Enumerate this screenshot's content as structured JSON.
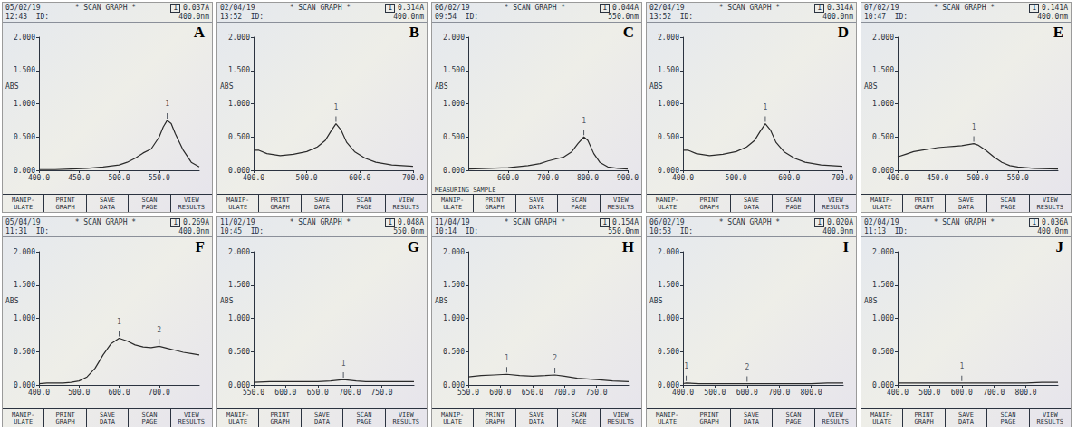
{
  "buttons": [
    [
      "MANIP-",
      "ULATE"
    ],
    [
      "PRINT",
      "GRAPH"
    ],
    [
      "SAVE",
      "DATA"
    ],
    [
      "SCAN",
      "PAGE"
    ],
    [
      "VIEW",
      "RESULTS"
    ]
  ],
  "chart_data": [
    {
      "type": "line",
      "panel": "A",
      "date": "05/02/19",
      "time": "12:43",
      "title": "* SCAN GRAPH *",
      "id_label": "ID:",
      "channel": "1",
      "reading": "0.037A",
      "wavelength": "400.0nm",
      "ylabel": "ABS",
      "grid": false,
      "x": [
        400,
        420,
        440,
        460,
        480,
        500,
        510,
        520,
        530,
        540,
        550,
        555,
        560,
        565,
        570,
        580,
        590,
        600
      ],
      "values": [
        0.01,
        0.01,
        0.02,
        0.03,
        0.05,
        0.08,
        0.12,
        0.18,
        0.26,
        0.32,
        0.5,
        0.65,
        0.75,
        0.7,
        0.55,
        0.3,
        0.12,
        0.05
      ],
      "xlim": [
        400,
        600
      ],
      "xticks": [
        {
          "value": 400,
          "label": "400.0"
        },
        {
          "value": 450,
          "label": "450.0"
        },
        {
          "value": 500,
          "label": "500.0"
        },
        {
          "value": 550,
          "label": "550.0"
        }
      ],
      "ylim": [
        0,
        2
      ],
      "yticks": [
        {
          "value": 0,
          "label": "0.000"
        },
        {
          "value": 0.5,
          "label": "0.500"
        },
        {
          "value": 1,
          "label": "1.000"
        },
        {
          "value": 1.5,
          "label": "1.500"
        },
        {
          "value": 2,
          "label": "2.000"
        }
      ],
      "annotations": [
        {
          "x": 560,
          "y": 0.75,
          "text": "1"
        }
      ]
    },
    {
      "type": "line",
      "panel": "B",
      "date": "02/04/19",
      "time": "13:52",
      "title": "* SCAN GRAPH *",
      "id_label": "ID:",
      "channel": "1",
      "reading": "0.314A",
      "wavelength": "400.0nm",
      "ylabel": "ABS",
      "grid": false,
      "x": [
        400,
        410,
        425,
        450,
        475,
        500,
        520,
        535,
        545,
        555,
        565,
        575,
        590,
        610,
        630,
        660,
        700
      ],
      "values": [
        0.3,
        0.3,
        0.25,
        0.22,
        0.24,
        0.28,
        0.35,
        0.45,
        0.58,
        0.7,
        0.6,
        0.42,
        0.28,
        0.18,
        0.12,
        0.08,
        0.06
      ],
      "xlim": [
        400,
        700
      ],
      "xticks": [
        {
          "value": 400,
          "label": "400.0"
        },
        {
          "value": 500,
          "label": "500.0"
        },
        {
          "value": 600,
          "label": "600.0"
        },
        {
          "value": 700,
          "label": "700.0"
        }
      ],
      "ylim": [
        0,
        2
      ],
      "yticks": [
        {
          "value": 0,
          "label": "0.000"
        },
        {
          "value": 0.5,
          "label": "0.500"
        },
        {
          "value": 1,
          "label": "1.000"
        },
        {
          "value": 1.5,
          "label": "1.500"
        },
        {
          "value": 2,
          "label": "2.000"
        }
      ],
      "annotations": [
        {
          "x": 555,
          "y": 0.7,
          "text": "1"
        }
      ]
    },
    {
      "type": "line",
      "panel": "C",
      "date": "06/02/19",
      "time": "09:54",
      "title": "* SCAN GRAPH *",
      "id_label": "ID:",
      "channel": "1",
      "reading": "0.044A",
      "wavelength": "550.0nm",
      "ylabel": "ABS",
      "grid": false,
      "status": "MEASURING SAMPLE",
      "x": [
        500,
        550,
        600,
        650,
        680,
        700,
        720,
        740,
        760,
        775,
        790,
        800,
        815,
        830,
        850,
        875,
        900
      ],
      "values": [
        0.02,
        0.03,
        0.04,
        0.07,
        0.1,
        0.14,
        0.17,
        0.2,
        0.28,
        0.4,
        0.5,
        0.45,
        0.25,
        0.12,
        0.05,
        0.03,
        0.02
      ],
      "xlim": [
        500,
        900
      ],
      "xticks": [
        {
          "value": 600,
          "label": "600.0"
        },
        {
          "value": 700,
          "label": "700.0"
        },
        {
          "value": 800,
          "label": "800.0"
        },
        {
          "value": 900,
          "label": "900.0"
        }
      ],
      "ylim": [
        0,
        2
      ],
      "yticks": [
        {
          "value": 0,
          "label": "0.000"
        },
        {
          "value": 0.5,
          "label": "0.500"
        },
        {
          "value": 1,
          "label": "1.000"
        },
        {
          "value": 1.5,
          "label": "1.500"
        },
        {
          "value": 2,
          "label": "2.000"
        }
      ],
      "annotations": [
        {
          "x": 790,
          "y": 0.5,
          "text": "1"
        }
      ]
    },
    {
      "type": "line",
      "panel": "D",
      "date": "02/04/19",
      "time": "13:52",
      "title": "* SCAN GRAPH *",
      "id_label": "ID:",
      "channel": "1",
      "reading": "0.314A",
      "wavelength": "400.0nm",
      "ylabel": "ABS",
      "grid": false,
      "x": [
        400,
        410,
        425,
        450,
        475,
        500,
        520,
        535,
        545,
        555,
        565,
        575,
        590,
        610,
        630,
        660,
        700
      ],
      "values": [
        0.3,
        0.3,
        0.25,
        0.22,
        0.24,
        0.28,
        0.35,
        0.45,
        0.58,
        0.7,
        0.6,
        0.42,
        0.28,
        0.18,
        0.12,
        0.08,
        0.06
      ],
      "xlim": [
        400,
        700
      ],
      "xticks": [
        {
          "value": 400,
          "label": "400.0"
        },
        {
          "value": 500,
          "label": "500.0"
        },
        {
          "value": 600,
          "label": "600.0"
        },
        {
          "value": 700,
          "label": "700.0"
        }
      ],
      "ylim": [
        0,
        2
      ],
      "yticks": [
        {
          "value": 0,
          "label": "0.000"
        },
        {
          "value": 0.5,
          "label": "0.500"
        },
        {
          "value": 1,
          "label": "1.000"
        },
        {
          "value": 1.5,
          "label": "1.500"
        },
        {
          "value": 2,
          "label": "2.000"
        }
      ],
      "annotations": [
        {
          "x": 555,
          "y": 0.7,
          "text": "1"
        }
      ]
    },
    {
      "type": "line",
      "panel": "E",
      "date": "07/02/19",
      "time": "10:47",
      "title": "* SCAN GRAPH *",
      "id_label": "ID:",
      "channel": "1",
      "reading": "0.141A",
      "wavelength": "400.0nm",
      "ylabel": "ABS",
      "grid": false,
      "x": [
        400,
        410,
        420,
        430,
        440,
        450,
        460,
        470,
        480,
        490,
        495,
        500,
        510,
        520,
        530,
        540,
        550,
        570,
        600
      ],
      "values": [
        0.2,
        0.24,
        0.28,
        0.3,
        0.32,
        0.34,
        0.35,
        0.36,
        0.37,
        0.39,
        0.4,
        0.38,
        0.3,
        0.2,
        0.12,
        0.07,
        0.05,
        0.03,
        0.02
      ],
      "xlim": [
        400,
        600
      ],
      "xticks": [
        {
          "value": 400,
          "label": "400.0"
        },
        {
          "value": 450,
          "label": "450.0"
        },
        {
          "value": 500,
          "label": "500.0"
        },
        {
          "value": 550,
          "label": "550.0"
        }
      ],
      "ylim": [
        0,
        2
      ],
      "yticks": [
        {
          "value": 0,
          "label": "0.000"
        },
        {
          "value": 0.5,
          "label": "0.500"
        },
        {
          "value": 1,
          "label": "1.000"
        },
        {
          "value": 1.5,
          "label": "1.500"
        },
        {
          "value": 2,
          "label": "2.000"
        }
      ],
      "annotations": [
        {
          "x": 495,
          "y": 0.4,
          "text": "1"
        }
      ]
    },
    {
      "type": "line",
      "panel": "F",
      "date": "05/04/19",
      "time": "11:31",
      "title": "* SCAN GRAPH *",
      "id_label": "ID:",
      "channel": "1",
      "reading": "0.269A",
      "wavelength": "400.0nm",
      "ylabel": "ABS",
      "grid": false,
      "x": [
        400,
        420,
        440,
        460,
        480,
        500,
        520,
        540,
        560,
        580,
        600,
        620,
        640,
        660,
        680,
        700,
        720,
        740,
        760,
        780,
        800
      ],
      "values": [
        0.02,
        0.03,
        0.03,
        0.03,
        0.04,
        0.06,
        0.12,
        0.25,
        0.45,
        0.62,
        0.7,
        0.66,
        0.6,
        0.57,
        0.56,
        0.58,
        0.55,
        0.52,
        0.49,
        0.47,
        0.45
      ],
      "xlim": [
        400,
        800
      ],
      "xticks": [
        {
          "value": 400,
          "label": "400.0"
        },
        {
          "value": 500,
          "label": "500.0"
        },
        {
          "value": 600,
          "label": "600.0"
        },
        {
          "value": 700,
          "label": "700.0"
        }
      ],
      "ylim": [
        0,
        2
      ],
      "yticks": [
        {
          "value": 0,
          "label": "0.000"
        },
        {
          "value": 0.5,
          "label": "0.500"
        },
        {
          "value": 1,
          "label": "1.000"
        },
        {
          "value": 1.5,
          "label": "1.500"
        },
        {
          "value": 2,
          "label": "2.000"
        }
      ],
      "annotations": [
        {
          "x": 600,
          "y": 0.7,
          "text": "1"
        },
        {
          "x": 700,
          "y": 0.58,
          "text": "2"
        }
      ]
    },
    {
      "type": "line",
      "panel": "G",
      "date": "11/02/19",
      "time": "10:45",
      "title": "* SCAN GRAPH *",
      "id_label": "ID:",
      "channel": "1",
      "reading": "0.048A",
      "wavelength": "550.0nm",
      "ylabel": "ABS",
      "grid": false,
      "x": [
        550,
        575,
        600,
        625,
        650,
        670,
        680,
        690,
        700,
        710,
        725,
        750,
        775,
        800
      ],
      "values": [
        0.04,
        0.05,
        0.05,
        0.05,
        0.05,
        0.06,
        0.07,
        0.08,
        0.07,
        0.06,
        0.05,
        0.05,
        0.05,
        0.05
      ],
      "xlim": [
        550,
        800
      ],
      "xticks": [
        {
          "value": 550,
          "label": "550.0"
        },
        {
          "value": 600,
          "label": "600.0"
        },
        {
          "value": 650,
          "label": "650.0"
        },
        {
          "value": 700,
          "label": "700.0"
        },
        {
          "value": 750,
          "label": "750.0"
        }
      ],
      "ylim": [
        0,
        2
      ],
      "yticks": [
        {
          "value": 0,
          "label": "0.000"
        },
        {
          "value": 0.5,
          "label": "0.500"
        },
        {
          "value": 1,
          "label": "1.000"
        },
        {
          "value": 1.5,
          "label": "1.500"
        },
        {
          "value": 2,
          "label": "2.000"
        }
      ],
      "annotations": [
        {
          "x": 690,
          "y": 0.08,
          "text": "1"
        }
      ]
    },
    {
      "type": "line",
      "panel": "H",
      "date": "11/04/19",
      "time": "10:14",
      "title": "* SCAN GRAPH *",
      "id_label": "ID:",
      "channel": "1",
      "reading": "0.154A",
      "wavelength": "550.0nm",
      "ylabel": "ABS",
      "grid": false,
      "x": [
        550,
        570,
        590,
        610,
        630,
        650,
        670,
        685,
        700,
        720,
        750,
        775,
        800
      ],
      "values": [
        0.12,
        0.14,
        0.15,
        0.16,
        0.14,
        0.13,
        0.14,
        0.15,
        0.13,
        0.1,
        0.08,
        0.06,
        0.05
      ],
      "xlim": [
        550,
        800
      ],
      "xticks": [
        {
          "value": 550,
          "label": "550.0"
        },
        {
          "value": 600,
          "label": "600.0"
        },
        {
          "value": 650,
          "label": "650.0"
        },
        {
          "value": 700,
          "label": "700.0"
        },
        {
          "value": 750,
          "label": "750.0"
        }
      ],
      "ylim": [
        0,
        2
      ],
      "yticks": [
        {
          "value": 0,
          "label": "0.000"
        },
        {
          "value": 0.5,
          "label": "0.500"
        },
        {
          "value": 1,
          "label": "1.000"
        },
        {
          "value": 1.5,
          "label": "1.500"
        },
        {
          "value": 2,
          "label": "2.000"
        }
      ],
      "annotations": [
        {
          "x": 610,
          "y": 0.16,
          "text": "1"
        },
        {
          "x": 685,
          "y": 0.15,
          "text": "2"
        }
      ]
    },
    {
      "type": "line",
      "panel": "I",
      "date": "06/02/19",
      "time": "10:53",
      "title": "* SCAN GRAPH *",
      "id_label": "ID:",
      "channel": "1",
      "reading": "0.020A",
      "wavelength": "400.0nm",
      "ylabel": "ABS",
      "grid": false,
      "x": [
        400,
        410,
        450,
        500,
        550,
        600,
        650,
        700,
        750,
        800,
        850,
        900
      ],
      "values": [
        0.02,
        0.03,
        0.02,
        0.02,
        0.02,
        0.02,
        0.02,
        0.02,
        0.02,
        0.02,
        0.03,
        0.03
      ],
      "xlim": [
        400,
        900
      ],
      "xticks": [
        {
          "value": 400,
          "label": "400.0"
        },
        {
          "value": 500,
          "label": "500.0"
        },
        {
          "value": 600,
          "label": "600.0"
        },
        {
          "value": 700,
          "label": "700.0"
        },
        {
          "value": 800,
          "label": "800.0"
        }
      ],
      "ylim": [
        0,
        2
      ],
      "yticks": [
        {
          "value": 0,
          "label": "0.000"
        },
        {
          "value": 0.5,
          "label": "0.500"
        },
        {
          "value": 1,
          "label": "1.000"
        },
        {
          "value": 1.5,
          "label": "1.500"
        },
        {
          "value": 2,
          "label": "2.000"
        }
      ],
      "annotations": [
        {
          "x": 410,
          "y": 0.03,
          "text": "1"
        },
        {
          "x": 600,
          "y": 0.02,
          "text": "2"
        }
      ]
    },
    {
      "type": "line",
      "panel": "J",
      "date": "02/04/19",
      "time": "11:13",
      "title": "* SCAN GRAPH *",
      "id_label": "ID:",
      "channel": "1",
      "reading": "0.036A",
      "wavelength": "400.0nm",
      "ylabel": "ABS",
      "grid": false,
      "x": [
        400,
        450,
        500,
        550,
        600,
        650,
        700,
        750,
        800,
        850,
        900
      ],
      "values": [
        0.03,
        0.03,
        0.03,
        0.03,
        0.03,
        0.03,
        0.03,
        0.03,
        0.03,
        0.04,
        0.04
      ],
      "xlim": [
        400,
        900
      ],
      "xticks": [
        {
          "value": 400,
          "label": "400.0"
        },
        {
          "value": 500,
          "label": "500.0"
        },
        {
          "value": 600,
          "label": "600.0"
        },
        {
          "value": 700,
          "label": "700.0"
        },
        {
          "value": 800,
          "label": "800.0"
        }
      ],
      "ylim": [
        0,
        2
      ],
      "yticks": [
        {
          "value": 0,
          "label": "0.000"
        },
        {
          "value": 0.5,
          "label": "0.500"
        },
        {
          "value": 1,
          "label": "1.000"
        },
        {
          "value": 1.5,
          "label": "1.500"
        },
        {
          "value": 2,
          "label": "2.000"
        }
      ],
      "annotations": [
        {
          "x": 600,
          "y": 0.03,
          "text": "1"
        }
      ]
    }
  ]
}
